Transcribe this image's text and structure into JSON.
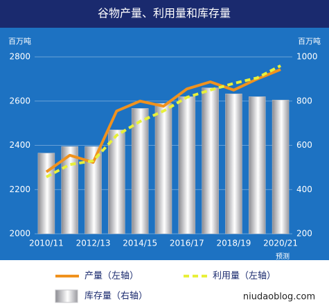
{
  "chart_data": {
    "type": "bar-line",
    "title": "谷物产量、利用量和库存量",
    "y_label": "百万吨",
    "y2_label": "百万吨",
    "categories": [
      "2010/11",
      null,
      "2012/13",
      null,
      "2014/15",
      null,
      "2016/17",
      null,
      "2018/19",
      null,
      "2020/21"
    ],
    "x_note": "预测",
    "ylim": [
      2000,
      2800
    ],
    "yticks": [
      2000,
      2200,
      2400,
      2600,
      2800
    ],
    "y2lim": [
      200,
      1000
    ],
    "y2ticks": [
      200,
      400,
      600,
      800,
      1000
    ],
    "series": [
      {
        "name": "库存量（右轴）",
        "type": "bar",
        "axis": "y2",
        "color": "#c4c4c8",
        "values": [
          565,
          595,
          595,
          670,
          767,
          790,
          820,
          860,
          833,
          820,
          805
        ]
      },
      {
        "name": "产量（左轴）",
        "type": "line",
        "color": "#f0921e",
        "values": [
          2280,
          2355,
          2323,
          2555,
          2600,
          2577,
          2655,
          2687,
          2650,
          2700,
          2743
        ]
      },
      {
        "name": "利用量（左轴）",
        "type": "line",
        "dashed": true,
        "color": "#e8f03a",
        "values": [
          2257,
          2313,
          2330,
          2445,
          2508,
          2555,
          2617,
          2650,
          2680,
          2705,
          2760
        ]
      }
    ],
    "watermark": "niudaoblog.com"
  }
}
